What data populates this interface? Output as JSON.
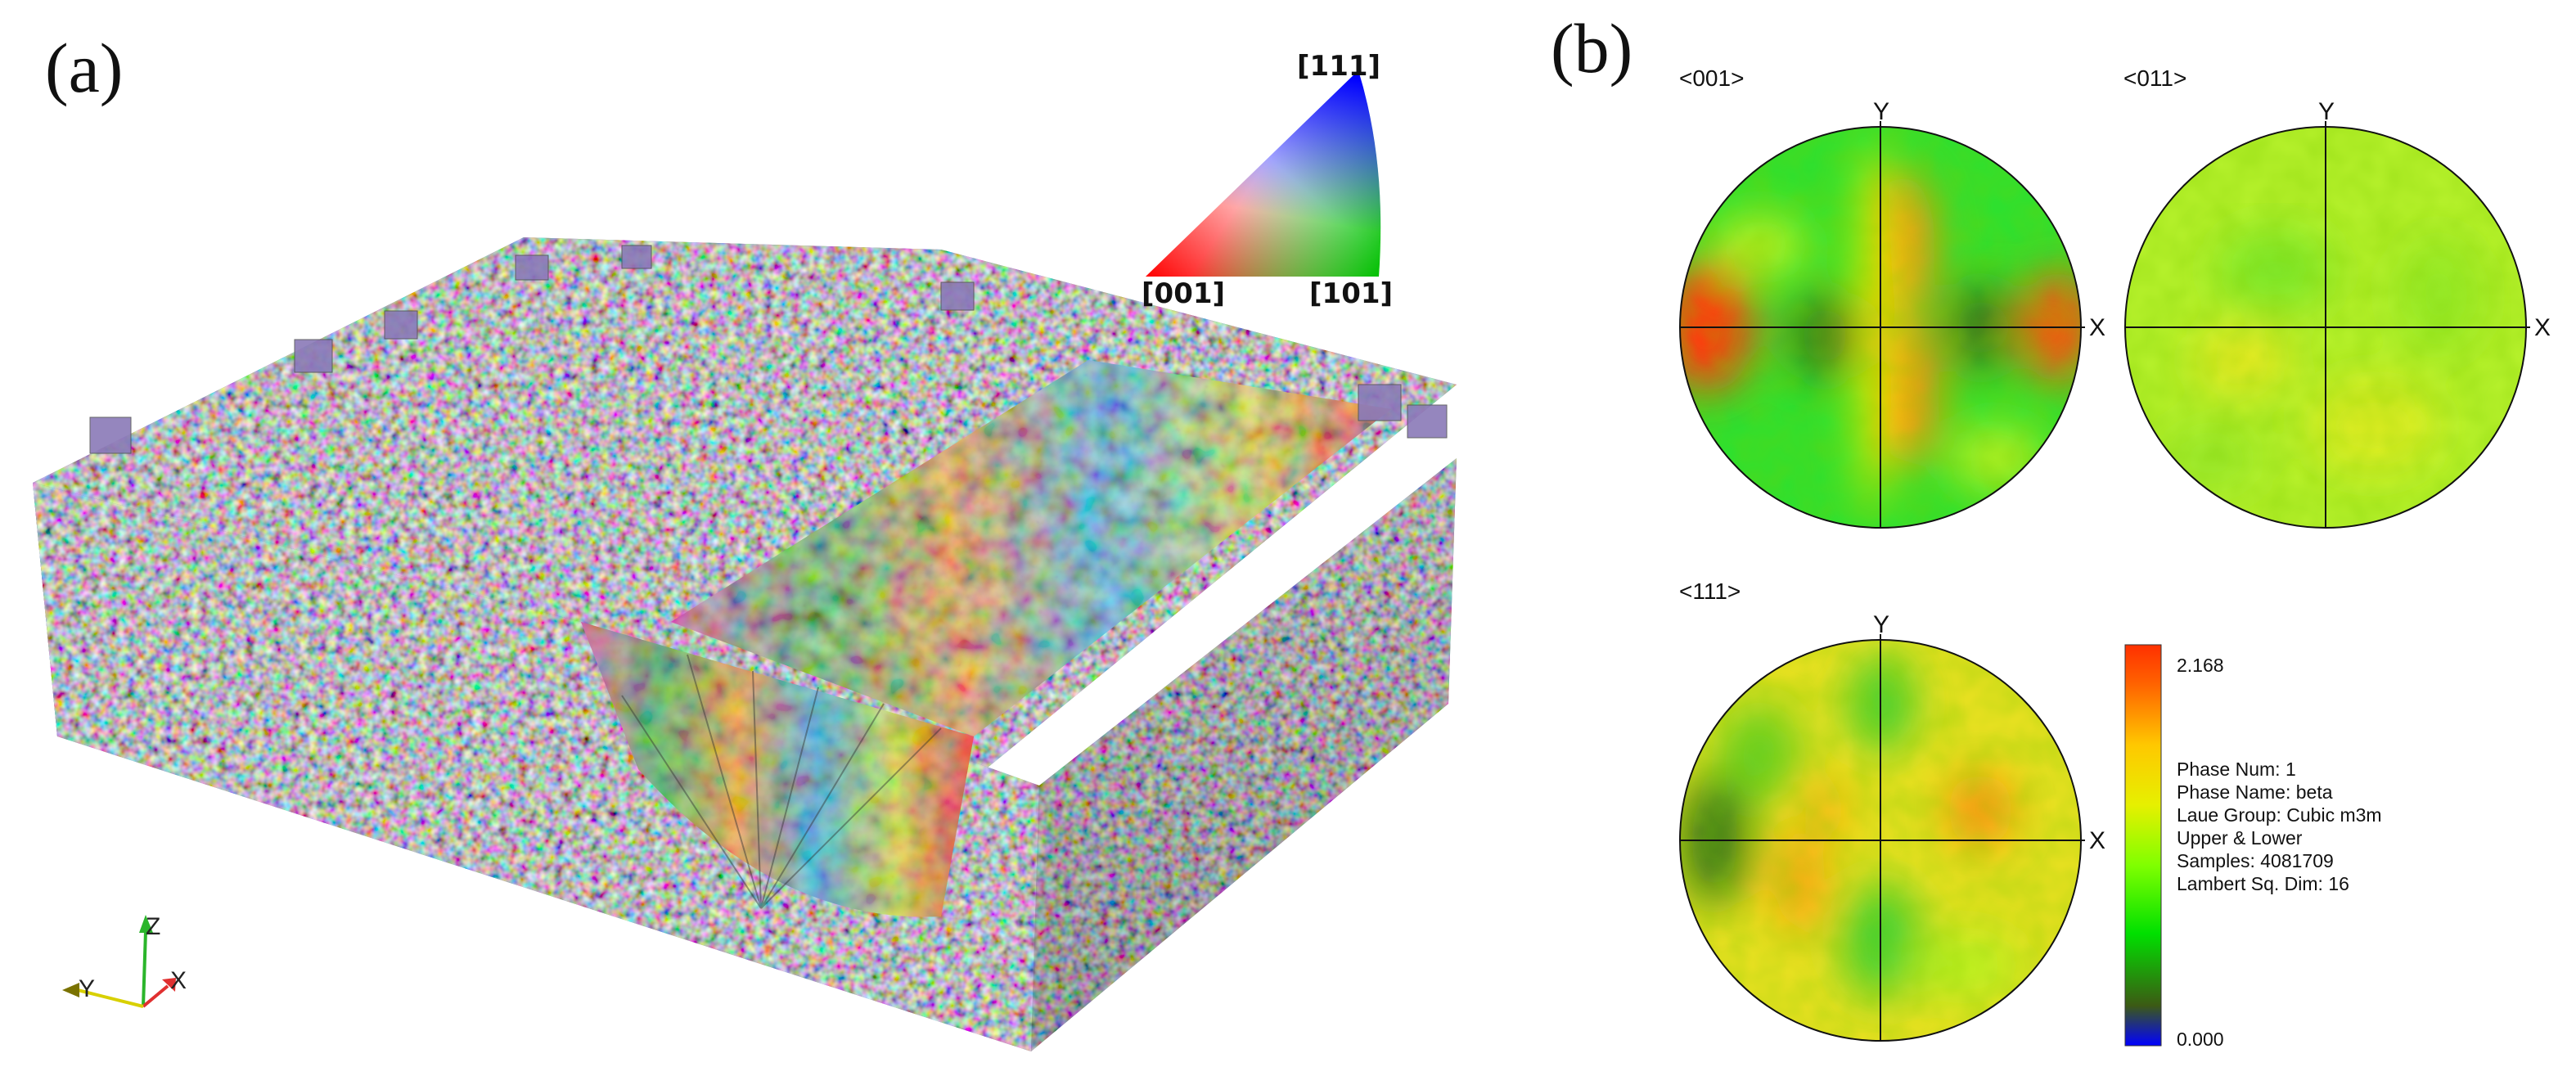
{
  "panels": {
    "a": {
      "label": "(a)"
    },
    "b": {
      "label": "(b)"
    }
  },
  "ipf_key": {
    "corners": [
      "[111]",
      "[001]",
      "[101]"
    ],
    "colors": {
      "001": "#ff0000",
      "101": "#00c000",
      "111": "#0000ff"
    }
  },
  "axes_triad": {
    "z": "Z",
    "y": "Y",
    "x": "X"
  },
  "pole_figures": [
    {
      "title": "<001>",
      "x_label": "X",
      "y_label": "Y"
    },
    {
      "title": "<011>",
      "x_label": "X",
      "y_label": "Y"
    },
    {
      "title": "<111>",
      "x_label": "X",
      "y_label": "Y"
    }
  ],
  "colorbar": {
    "max_label": "2.168",
    "min_label": "0.000",
    "max": 2.168,
    "min": 0.0,
    "stops": [
      "#0000ff",
      "#3c5a14",
      "#00e000",
      "#80ff00",
      "#e6f000",
      "#ffc800",
      "#ff6400",
      "#ff3000"
    ]
  },
  "info": [
    "Phase Num: 1",
    "Phase Name: beta",
    "Laue Group: Cubic m3m",
    "Upper & Lower",
    "Samples: 4081709",
    "Lambert Sq. Dim: 16"
  ]
}
